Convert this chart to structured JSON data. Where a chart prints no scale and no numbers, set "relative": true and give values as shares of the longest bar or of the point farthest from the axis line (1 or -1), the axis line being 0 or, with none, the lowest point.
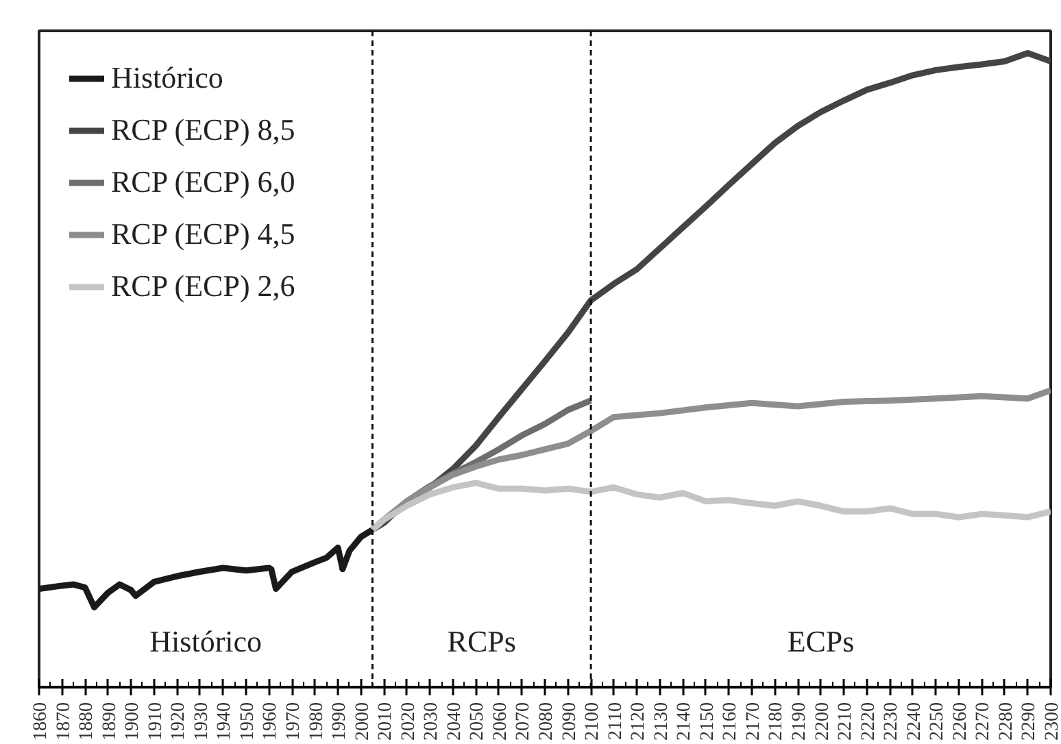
{
  "chart_data": {
    "type": "line",
    "relative": true,
    "xlim": [
      1860,
      2300
    ],
    "xticks": [
      1860,
      1870,
      1880,
      1890,
      1900,
      1910,
      1920,
      1930,
      1940,
      1950,
      1960,
      1970,
      1980,
      1990,
      2000,
      2010,
      2020,
      2030,
      2040,
      2050,
      2060,
      2070,
      2080,
      2090,
      2100,
      2110,
      2120,
      2130,
      2140,
      2150,
      2160,
      2170,
      2180,
      2190,
      2200,
      2210,
      2220,
      2230,
      2240,
      2250,
      2260,
      2270,
      2280,
      2290,
      2300
    ],
    "grid": false,
    "legend": "top left",
    "line_style": "solid",
    "series": [
      {
        "name": "Histórico",
        "color": "#1a1a1a",
        "x": [
          1860,
          1870,
          1875,
          1880,
          1884,
          1890,
          1895,
          1900,
          1902,
          1910,
          1920,
          1930,
          1940,
          1950,
          1960,
          1961,
          1963,
          1970,
          1980,
          1985,
          1990,
          1992,
          1995,
          2000,
          2005
        ],
        "values": [
          0.155,
          0.16,
          0.162,
          0.157,
          0.126,
          0.149,
          0.162,
          0.153,
          0.144,
          0.166,
          0.175,
          0.182,
          0.188,
          0.184,
          0.188,
          0.186,
          0.155,
          0.182,
          0.197,
          0.204,
          0.22,
          0.186,
          0.215,
          0.237,
          0.248
        ]
      },
      {
        "name": "RCP (ECP) 8,5",
        "color": "#444444",
        "x": [
          2005,
          2010,
          2020,
          2030,
          2040,
          2050,
          2060,
          2070,
          2080,
          2090,
          2100,
          2110,
          2120,
          2130,
          2140,
          2150,
          2160,
          2170,
          2180,
          2190,
          2200,
          2210,
          2220,
          2230,
          2240,
          2250,
          2260,
          2270,
          2280,
          2290,
          2300
        ],
        "values": [
          0.248,
          0.259,
          0.293,
          0.315,
          0.344,
          0.381,
          0.426,
          0.47,
          0.514,
          0.559,
          0.61,
          0.636,
          0.659,
          0.692,
          0.725,
          0.758,
          0.792,
          0.825,
          0.858,
          0.885,
          0.907,
          0.925,
          0.942,
          0.953,
          0.965,
          0.973,
          0.978,
          0.982,
          0.987,
          1.0,
          0.987
        ]
      },
      {
        "name": "RCP (ECP) 6,0",
        "color": "#6e6e6e",
        "x": [
          2005,
          2010,
          2020,
          2030,
          2040,
          2050,
          2060,
          2070,
          2080,
          2090,
          2100
        ],
        "values": [
          0.248,
          0.264,
          0.293,
          0.317,
          0.337,
          0.355,
          0.375,
          0.397,
          0.415,
          0.437,
          0.452
        ]
      },
      {
        "name": "RCP (ECP) 4,5",
        "color": "#8e8e8e",
        "x": [
          2005,
          2010,
          2020,
          2030,
          2040,
          2050,
          2060,
          2070,
          2080,
          2090,
          2100,
          2110,
          2130,
          2150,
          2170,
          2190,
          2210,
          2230,
          2250,
          2270,
          2290,
          2300
        ],
        "values": [
          0.248,
          0.264,
          0.293,
          0.315,
          0.335,
          0.348,
          0.359,
          0.366,
          0.375,
          0.384,
          0.404,
          0.426,
          0.432,
          0.441,
          0.448,
          0.443,
          0.45,
          0.452,
          0.455,
          0.459,
          0.455,
          0.468
        ]
      },
      {
        "name": "RCP (ECP) 2,6",
        "color": "#c4c4c4",
        "x": [
          2005,
          2010,
          2020,
          2030,
          2040,
          2050,
          2060,
          2070,
          2080,
          2090,
          2100,
          2110,
          2120,
          2130,
          2140,
          2150,
          2160,
          2170,
          2180,
          2190,
          2200,
          2210,
          2220,
          2230,
          2240,
          2250,
          2260,
          2270,
          2280,
          2290,
          2300
        ],
        "values": [
          0.248,
          0.264,
          0.286,
          0.304,
          0.315,
          0.322,
          0.313,
          0.313,
          0.31,
          0.313,
          0.308,
          0.315,
          0.304,
          0.299,
          0.306,
          0.293,
          0.295,
          0.29,
          0.286,
          0.293,
          0.286,
          0.277,
          0.277,
          0.282,
          0.273,
          0.273,
          0.268,
          0.273,
          0.271,
          0.268,
          0.277
        ]
      }
    ],
    "ref_lines": [
      {
        "axis": "x",
        "value": 2005,
        "line_style": "dashed"
      },
      {
        "axis": "x",
        "value": 2100,
        "line_style": "dashed"
      }
    ],
    "annotations": [
      "Histórico",
      "RCPs",
      "ECPs"
    ]
  }
}
